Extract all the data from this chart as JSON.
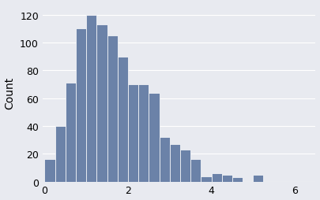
{
  "bar_heights": [
    16,
    40,
    71,
    110,
    120,
    113,
    105,
    90,
    70,
    70,
    64,
    32,
    27,
    23,
    16,
    4,
    6,
    5,
    3,
    0,
    5
  ],
  "bin_start": 0.0,
  "bin_width": 0.25,
  "bar_color": "#6b82a8",
  "bar_edgecolor": "#ffffff",
  "bar_linewidth": 0.5,
  "ylabel": "Count",
  "ylabel_fontsize": 10,
  "xlim": [
    -0.05,
    6.5
  ],
  "ylim": [
    0,
    128
  ],
  "yticks": [
    0,
    20,
    40,
    60,
    80,
    100,
    120
  ],
  "xticks": [
    0,
    2,
    4,
    6
  ],
  "tick_labelsize": 9,
  "background_color": "#e8eaf0",
  "grid_color": "#ffffff",
  "grid_linewidth": 0.8,
  "figsize": [
    4.05,
    2.55
  ],
  "dpi": 100
}
